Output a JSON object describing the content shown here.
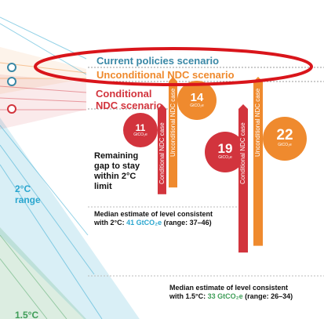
{
  "chart_data": {
    "type": "bar",
    "title": "",
    "scenario_labels": {
      "current": "Current policies scenario",
      "unconditional": "Unconditional NDC scenario",
      "conditional_line1": "Conditional",
      "conditional_line2": "NDC scenario"
    },
    "range_labels": {
      "two_c_line1": "2°C",
      "two_c_line2": "range",
      "one_five_c": "1.5°C"
    },
    "gap_label": [
      "Remaining",
      "gap to stay",
      "within 2°C",
      "limit"
    ],
    "gap_unit": "GtCO₂e",
    "gaps": [
      {
        "case": "Conditional NDC case",
        "target": "2°C",
        "value": 11
      },
      {
        "case": "Unconditional NDC case",
        "target": "2°C",
        "value": 14
      },
      {
        "case": "Conditional NDC case",
        "target": "1.5°C",
        "value": 19
      },
      {
        "case": "Unconditional NDC case",
        "target": "1.5°C",
        "value": 22
      }
    ],
    "median_2c": {
      "line1": "Median estimate of level consistent",
      "prefix": "with 2°C: ",
      "value": "41 GtCO₂e",
      "suffix": " (range: 37–46)"
    },
    "median_15c": {
      "line1": "Median estimate of level consistent",
      "prefix": "with 1.5°C: ",
      "value": "33 GtCO₂e",
      "suffix": " (range: 26–34)"
    },
    "colors": {
      "current": "#3a88a6",
      "unconditional": "#ef8a2e",
      "conditional": "#d2343d",
      "range_2c": "#2aa6cf",
      "range_15c": "#3f9d58",
      "highlight_ellipse": "#d9151b"
    }
  }
}
